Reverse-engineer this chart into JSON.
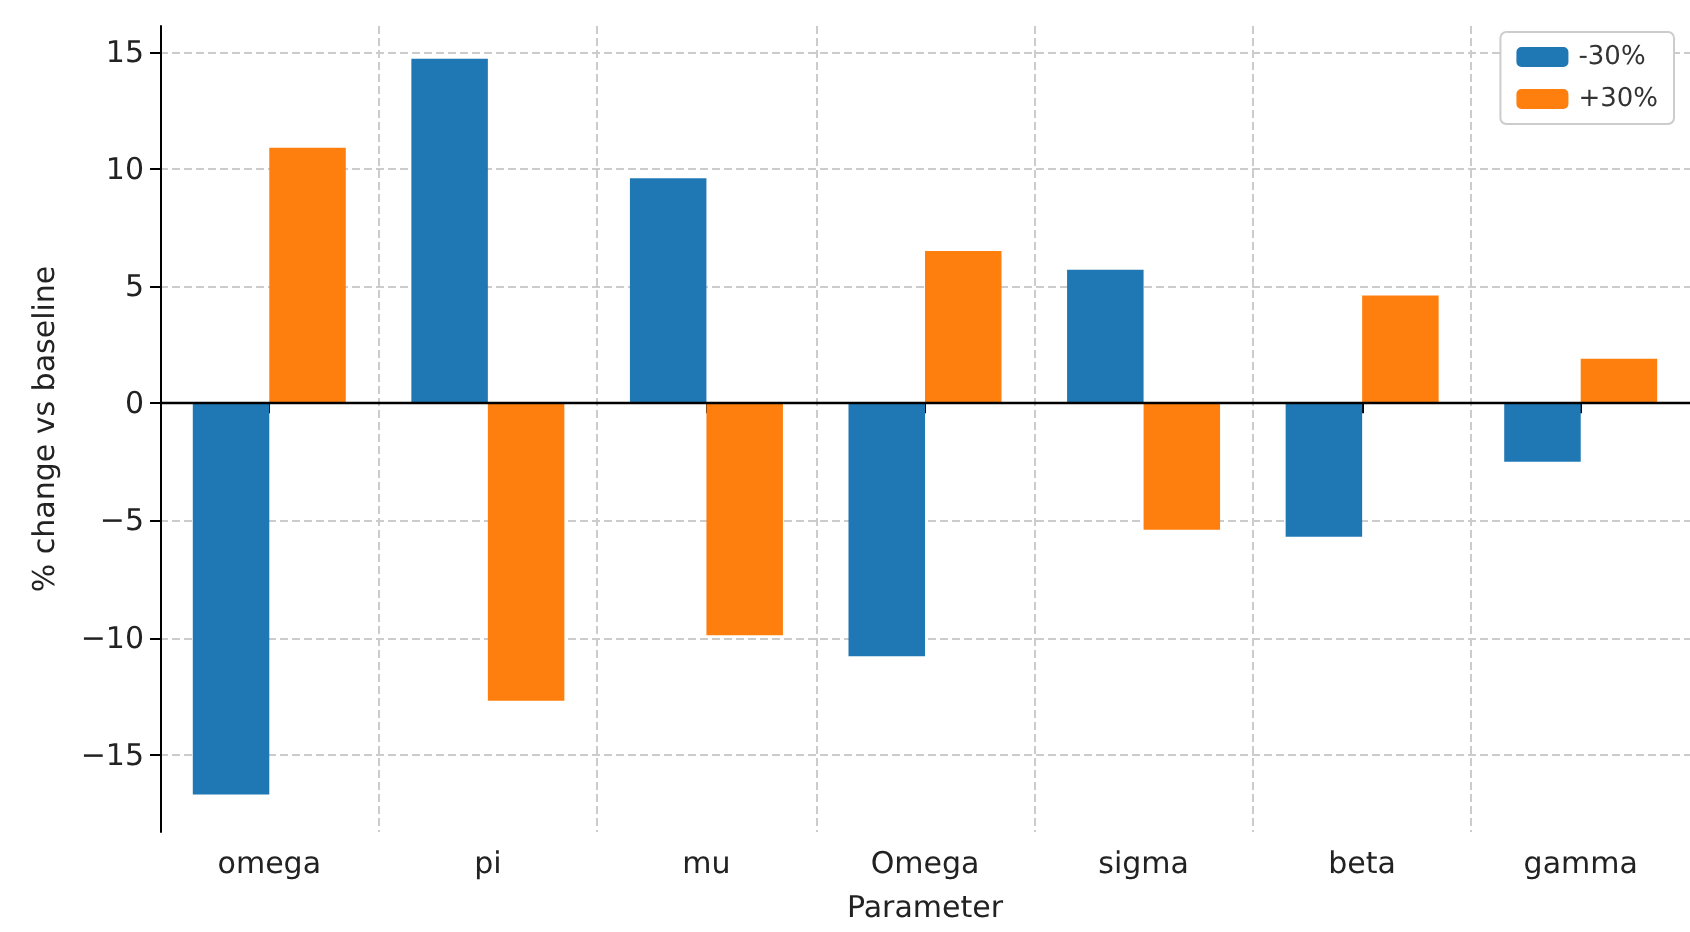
{
  "chart_data": {
    "type": "bar",
    "xlabel": "Parameter",
    "ylabel": "% change vs baseline",
    "categories": [
      "omega",
      "pi",
      "mu",
      "Omega",
      "sigma",
      "beta",
      "gamma"
    ],
    "series": [
      {
        "name": "-30%",
        "color": "#1f77b4",
        "values": [
          -16.7,
          14.7,
          9.6,
          -10.8,
          5.7,
          -5.7,
          -2.5
        ]
      },
      {
        "name": "+30%",
        "color": "#ff7f0e",
        "values": [
          10.9,
          -12.7,
          -9.9,
          6.5,
          -5.4,
          4.6,
          1.9
        ]
      }
    ],
    "ylim": [
      -18.3,
      16.1
    ],
    "yticks": [
      -15,
      -10,
      -5,
      0,
      5,
      10,
      15
    ],
    "ref_lines": [
      {
        "axis": "y",
        "value": 0,
        "color": "#000000"
      }
    ],
    "grid": true,
    "legend": "top right"
  }
}
